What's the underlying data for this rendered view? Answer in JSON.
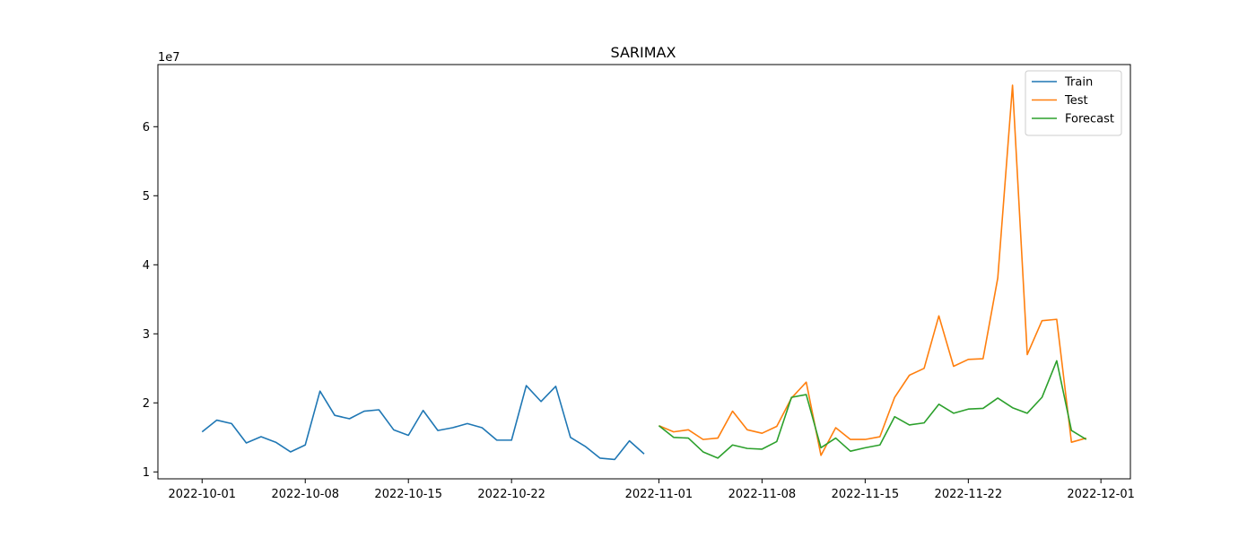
{
  "chart_data": {
    "type": "line",
    "title": "SARIMAX",
    "xlabel": "",
    "ylabel": "",
    "y_offset_label": "1e7",
    "y_scale": 10000000,
    "xlim": [
      "2022-09-28",
      "2022-12-03"
    ],
    "ylim": [
      9000000,
      69000000
    ],
    "x_ticks": [
      "2022-10-01",
      "2022-10-08",
      "2022-10-15",
      "2022-10-22",
      "2022-11-01",
      "2022-11-08",
      "2022-11-15",
      "2022-11-22",
      "2022-12-01"
    ],
    "y_ticks": [
      10000000,
      20000000,
      30000000,
      40000000,
      50000000,
      60000000
    ],
    "y_tick_labels": [
      "1",
      "2",
      "3",
      "4",
      "5",
      "6"
    ],
    "grid": false,
    "legend": "top-right",
    "series": [
      {
        "name": "Train",
        "color": "#1f77b4",
        "start": "2022-10-01",
        "values": [
          15800000,
          17500000,
          17000000,
          14200000,
          15100000,
          14300000,
          12900000,
          13900000,
          21700000,
          18200000,
          17700000,
          18800000,
          19000000,
          16100000,
          15300000,
          18900000,
          16000000,
          16400000,
          17000000,
          16400000,
          14600000,
          14600000,
          22500000,
          20200000,
          22400000,
          15000000,
          13700000,
          12000000,
          11800000,
          14500000,
          12600000
        ]
      },
      {
        "name": "Test",
        "color": "#ff7f0e",
        "start": "2022-11-01",
        "values": [
          16700000,
          15800000,
          16100000,
          14700000,
          14900000,
          18800000,
          16100000,
          15600000,
          16600000,
          20700000,
          23000000,
          12400000,
          16400000,
          14700000,
          14700000,
          15100000,
          20800000,
          24000000,
          25000000,
          32600000,
          25300000,
          26300000,
          26400000,
          38100000,
          66000000,
          27000000,
          31900000,
          32100000,
          14300000,
          14900000
        ]
      },
      {
        "name": "Forecast",
        "color": "#2ca02c",
        "start": "2022-11-01",
        "values": [
          16700000,
          15000000,
          14900000,
          12900000,
          12000000,
          13900000,
          13400000,
          13300000,
          14400000,
          20800000,
          21200000,
          13500000,
          14900000,
          13000000,
          13500000,
          13900000,
          18000000,
          16800000,
          17100000,
          19800000,
          18500000,
          19100000,
          19200000,
          20700000,
          19300000,
          18500000,
          20800000,
          26100000,
          16000000,
          14700000
        ]
      }
    ]
  }
}
